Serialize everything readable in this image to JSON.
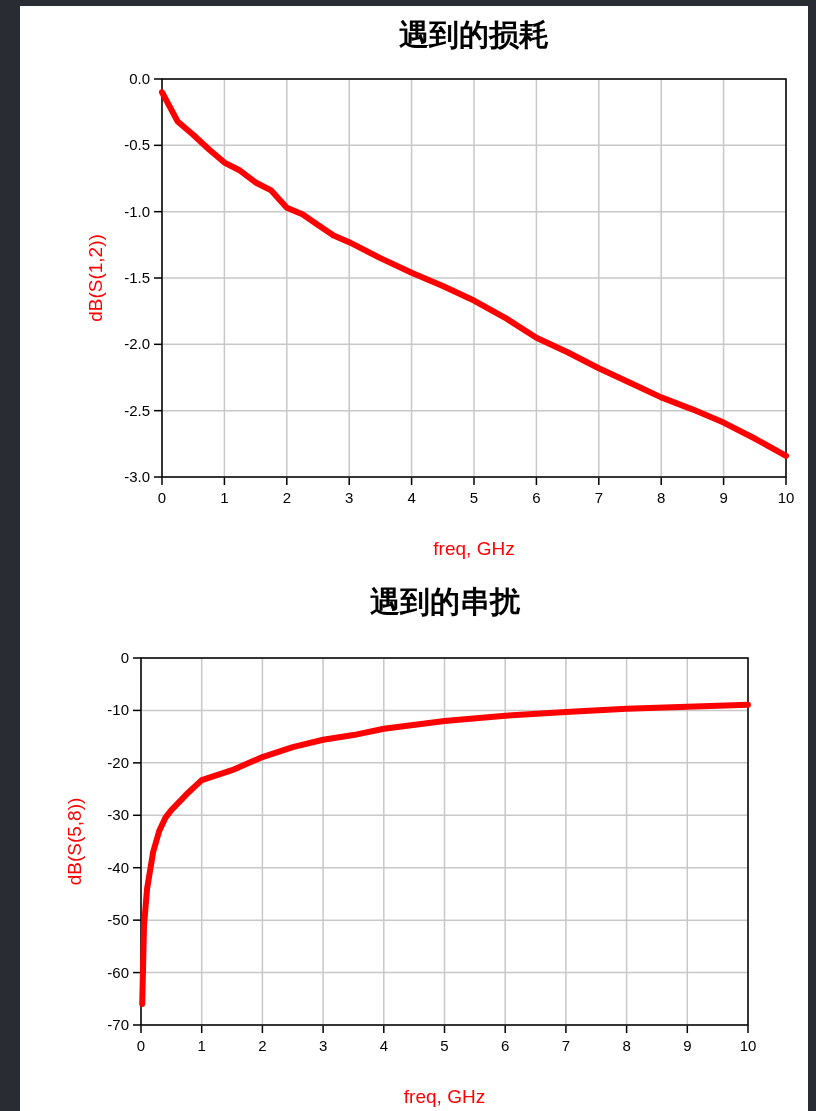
{
  "chart_data": [
    {
      "type": "line",
      "title": "遇到的损耗",
      "xlabel": "freq, GHz",
      "ylabel": "dB(S(1,2))",
      "xlim": [
        0,
        10
      ],
      "ylim": [
        -3,
        0
      ],
      "xticks": [
        0,
        1,
        2,
        3,
        4,
        5,
        6,
        7,
        8,
        9,
        10
      ],
      "yticks": [
        {
          "value": 0,
          "label": "0.0"
        },
        {
          "value": -0.5,
          "label": "-0.5"
        },
        {
          "value": -1,
          "label": "-1.0"
        },
        {
          "value": -1.5,
          "label": "-1.5"
        },
        {
          "value": -2,
          "label": "-2.0"
        },
        {
          "value": -2.5,
          "label": "-2.5"
        },
        {
          "value": -3,
          "label": "-3.0"
        }
      ],
      "grid": true,
      "line_style": "solid",
      "marker": "none",
      "x": [
        0,
        0.25,
        0.5,
        0.75,
        1,
        1.25,
        1.5,
        1.75,
        2,
        2.25,
        2.5,
        2.75,
        3,
        3.5,
        4,
        4.5,
        5,
        5.5,
        6,
        6.5,
        7,
        7.5,
        8,
        8.5,
        9,
        9.5,
        10
      ],
      "series": [
        {
          "color": "#ff0000",
          "values": [
            -0.1,
            -0.32,
            -0.42,
            -0.53,
            -0.63,
            -0.69,
            -0.78,
            -0.84,
            -0.97,
            -1.02,
            -1.1,
            -1.18,
            -1.23,
            -1.35,
            -1.46,
            -1.56,
            -1.67,
            -1.8,
            -1.95,
            -2.06,
            -2.18,
            -2.29,
            -2.4,
            -2.49,
            -2.59,
            -2.71,
            -2.84
          ]
        }
      ]
    },
    {
      "type": "line",
      "title": "遇到的串扰",
      "xlabel": "freq, GHz",
      "ylabel": "dB(S(5,8))",
      "xlim": [
        0,
        10
      ],
      "ylim": [
        -70,
        0
      ],
      "xticks": [
        0,
        1,
        2,
        3,
        4,
        5,
        6,
        7,
        8,
        9,
        10
      ],
      "yticks": [
        0,
        -10,
        -20,
        -30,
        -40,
        -50,
        -60,
        -70
      ],
      "grid": true,
      "line_style": "solid",
      "marker": "none",
      "x": [
        0.02,
        0.05,
        0.1,
        0.2,
        0.3,
        0.4,
        0.5,
        0.75,
        1,
        1.5,
        2,
        2.5,
        3,
        3.5,
        4,
        5,
        6,
        7,
        8,
        9,
        10
      ],
      "series": [
        {
          "color": "#ff0000",
          "values": [
            -66,
            -51,
            -44,
            -37,
            -33,
            -30.5,
            -29,
            -26,
            -23.3,
            -21.4,
            -18.9,
            -17,
            -15.6,
            -14.7,
            -13.5,
            -12,
            -11,
            -10.3,
            -9.7,
            -9.3,
            -8.9
          ]
        }
      ]
    }
  ]
}
